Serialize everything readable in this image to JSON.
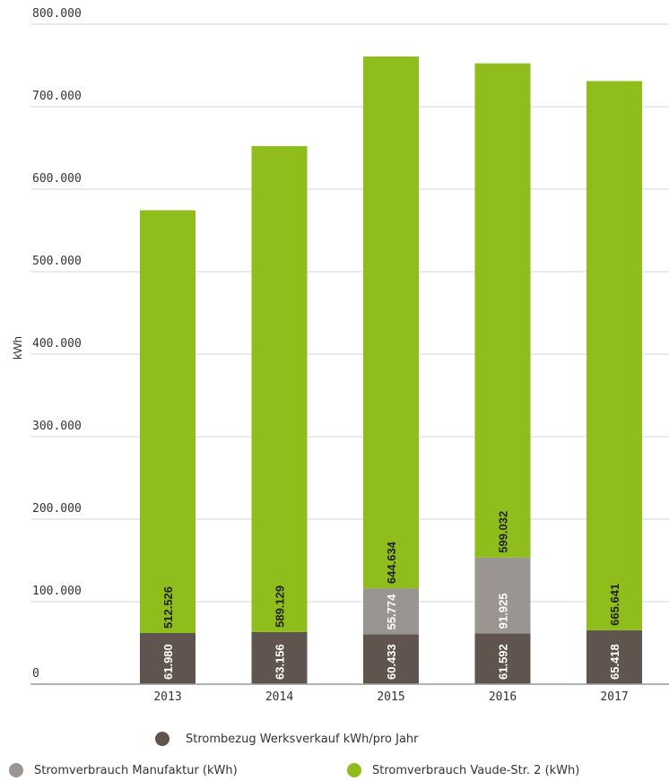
{
  "chart_data": {
    "type": "bar",
    "stacked": true,
    "categories": [
      "2013",
      "2014",
      "2015",
      "2016",
      "2017"
    ],
    "ylabel": "kWh",
    "ylim": [
      0,
      800000
    ],
    "yticks": [
      "0",
      "100.000",
      "200.000",
      "300.000",
      "400.000",
      "500.000",
      "600.000",
      "700.000",
      "800.000"
    ],
    "grid": true,
    "legend_position": "bottom",
    "series": [
      {
        "name": "Strombezug Werksverkauf kWh/pro Jahr",
        "color": "#5f554e",
        "values": [
          61980,
          63156,
          60433,
          61592,
          65418
        ],
        "labels": [
          "61.980",
          "63.156",
          "60.433",
          "61.592",
          "65.418"
        ]
      },
      {
        "name": "Stromverbrauch Manufaktur (kWh)",
        "color": "#9b9591",
        "values": [
          0,
          0,
          55774,
          91925,
          0
        ],
        "labels": [
          "",
          "",
          "55.774",
          "91.925",
          ""
        ]
      },
      {
        "name": "Stromverbrauch Vaude-Str. 2 (kWh)",
        "color": "#8fbd1b",
        "values": [
          512526,
          589129,
          644634,
          599032,
          665641
        ],
        "labels": [
          "512.526",
          "589.129",
          "644.634",
          "599.032",
          "665.641"
        ]
      }
    ]
  },
  "legend": {
    "item1": "Strombezug Werksverkauf kWh/pro Jahr",
    "item2": "Stromverbrauch Manufaktur (kWh)",
    "item3": "Stromverbrauch Vaude-Str. 2 (kWh)"
  }
}
